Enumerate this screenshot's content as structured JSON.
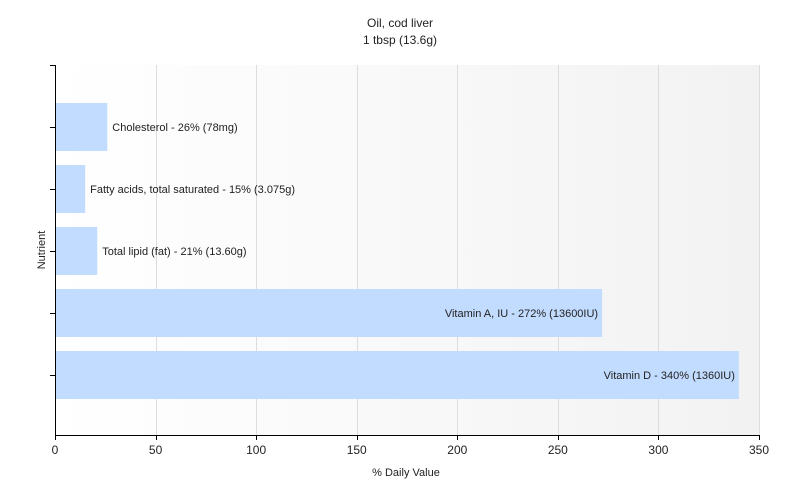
{
  "chart_data": {
    "type": "bar",
    "orientation": "horizontal",
    "title": "Oil, cod liver",
    "subtitle": "1 tbsp (13.6g)",
    "xlabel": "% Daily Value",
    "ylabel": "Nutrient",
    "xlim": [
      0,
      350
    ],
    "xticks": [
      0,
      50,
      100,
      150,
      200,
      250,
      300,
      350
    ],
    "grid": true,
    "categories": [
      "Cholesterol",
      "Fatty acids, total saturated",
      "Total lipid (fat)",
      "Vitamin A, IU",
      "Vitamin D"
    ],
    "values": [
      26,
      15,
      21,
      272,
      340
    ],
    "labels": [
      "Cholesterol - 26% (78mg)",
      "Fatty acids, total saturated - 15% (3.075g)",
      "Total lipid (fat) - 21% (13.60g)",
      "Vitamin A, IU - 272% (13600IU)",
      "Vitamin D - 340% (1360IU)"
    ],
    "colors": {
      "bar": "#c2dcff",
      "axis": "#000000",
      "grid": "#dddddd",
      "plot_bg_start": "#ffffff",
      "plot_bg_end": "#f2f2f2"
    }
  }
}
